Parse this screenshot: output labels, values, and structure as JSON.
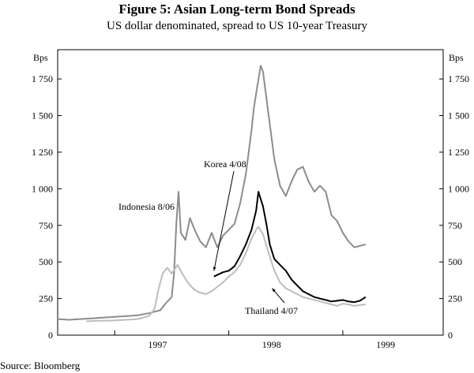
{
  "chart_data": {
    "type": "line",
    "title": "Figure 5: Asian Long-term Bond Spreads",
    "subtitle": "US dollar denominated, spread to US 10-year Treasury",
    "ylabel_left": "Bps",
    "ylabel_right": "Bps",
    "ylim": [
      0,
      1950
    ],
    "xlim": [
      1996.5,
      1999.88
    ],
    "yticks": [
      0,
      250,
      500,
      750,
      1000,
      1250,
      1500,
      1750
    ],
    "ytick_labels": [
      "0",
      "250",
      "500",
      "750",
      "1 000",
      "1 250",
      "1 500",
      "1 750"
    ],
    "xtick_labels": [
      {
        "label": "1997",
        "x": 1997.0
      },
      {
        "label": "1998",
        "x": 1998.0
      },
      {
        "label": "1999",
        "x": 1999.0
      }
    ],
    "year_boundaries": [
      1997.0,
      1998.0,
      1999.0
    ],
    "source": "Source: Bloomberg",
    "annotations": [
      {
        "text": "Korea 4/08",
        "series": "Korea",
        "at": [
          1997.87,
          440
        ]
      },
      {
        "text": "Indonesia 8/06",
        "series": "Indonesia",
        "at": [
          1997.55,
          800
        ]
      },
      {
        "text": "Thailand 4/07",
        "series": "Thailand",
        "at": [
          1998.38,
          320
        ]
      }
    ],
    "series": [
      {
        "name": "Indonesia",
        "color": "#8c8c8c",
        "points": [
          [
            1996.5,
            110
          ],
          [
            1996.6,
            105
          ],
          [
            1996.7,
            110
          ],
          [
            1996.8,
            115
          ],
          [
            1996.9,
            120
          ],
          [
            1997.0,
            125
          ],
          [
            1997.1,
            130
          ],
          [
            1997.2,
            135
          ],
          [
            1997.3,
            150
          ],
          [
            1997.4,
            170
          ],
          [
            1997.45,
            220
          ],
          [
            1997.5,
            260
          ],
          [
            1997.52,
            420
          ],
          [
            1997.54,
            760
          ],
          [
            1997.56,
            980
          ],
          [
            1997.58,
            700
          ],
          [
            1997.62,
            650
          ],
          [
            1997.66,
            800
          ],
          [
            1997.7,
            720
          ],
          [
            1997.75,
            640
          ],
          [
            1997.8,
            600
          ],
          [
            1997.85,
            700
          ],
          [
            1997.9,
            600
          ],
          [
            1997.95,
            680
          ],
          [
            1998.0,
            720
          ],
          [
            1998.05,
            760
          ],
          [
            1998.1,
            900
          ],
          [
            1998.15,
            1100
          ],
          [
            1998.2,
            1400
          ],
          [
            1998.22,
            1550
          ],
          [
            1998.25,
            1700
          ],
          [
            1998.28,
            1840
          ],
          [
            1998.3,
            1800
          ],
          [
            1998.35,
            1500
          ],
          [
            1998.4,
            1200
          ],
          [
            1998.45,
            1020
          ],
          [
            1998.5,
            950
          ],
          [
            1998.55,
            1050
          ],
          [
            1998.6,
            1130
          ],
          [
            1998.65,
            1150
          ],
          [
            1998.7,
            1050
          ],
          [
            1998.75,
            980
          ],
          [
            1998.8,
            1020
          ],
          [
            1998.85,
            980
          ],
          [
            1998.9,
            820
          ],
          [
            1998.95,
            780
          ],
          [
            1999.0,
            700
          ],
          [
            1999.05,
            640
          ],
          [
            1999.1,
            600
          ],
          [
            1999.15,
            610
          ],
          [
            1999.2,
            620
          ]
        ]
      },
      {
        "name": "Korea",
        "color": "#000000",
        "points": [
          [
            1997.87,
            400
          ],
          [
            1997.95,
            430
          ],
          [
            1998.0,
            440
          ],
          [
            1998.05,
            470
          ],
          [
            1998.1,
            540
          ],
          [
            1998.15,
            620
          ],
          [
            1998.2,
            720
          ],
          [
            1998.24,
            850
          ],
          [
            1998.26,
            980
          ],
          [
            1998.28,
            930
          ],
          [
            1998.3,
            880
          ],
          [
            1998.33,
            760
          ],
          [
            1998.36,
            620
          ],
          [
            1998.4,
            520
          ],
          [
            1998.45,
            480
          ],
          [
            1998.5,
            440
          ],
          [
            1998.55,
            380
          ],
          [
            1998.6,
            340
          ],
          [
            1998.65,
            300
          ],
          [
            1998.7,
            280
          ],
          [
            1998.75,
            260
          ],
          [
            1998.8,
            250
          ],
          [
            1998.85,
            240
          ],
          [
            1998.9,
            230
          ],
          [
            1998.95,
            235
          ],
          [
            1999.0,
            240
          ],
          [
            1999.05,
            230
          ],
          [
            1999.1,
            225
          ],
          [
            1999.15,
            235
          ],
          [
            1999.2,
            260
          ]
        ]
      },
      {
        "name": "Thailand",
        "color": "#bdbdbd",
        "points": [
          [
            1996.75,
            95
          ],
          [
            1996.85,
            98
          ],
          [
            1997.0,
            100
          ],
          [
            1997.1,
            105
          ],
          [
            1997.2,
            110
          ],
          [
            1997.3,
            130
          ],
          [
            1997.35,
            180
          ],
          [
            1997.38,
            300
          ],
          [
            1997.42,
            420
          ],
          [
            1997.46,
            460
          ],
          [
            1997.5,
            420
          ],
          [
            1997.55,
            480
          ],
          [
            1997.6,
            410
          ],
          [
            1997.65,
            350
          ],
          [
            1997.7,
            310
          ],
          [
            1997.75,
            290
          ],
          [
            1997.8,
            280
          ],
          [
            1997.85,
            300
          ],
          [
            1997.9,
            330
          ],
          [
            1997.95,
            360
          ],
          [
            1998.0,
            400
          ],
          [
            1998.05,
            430
          ],
          [
            1998.1,
            480
          ],
          [
            1998.15,
            560
          ],
          [
            1998.2,
            660
          ],
          [
            1998.24,
            720
          ],
          [
            1998.26,
            740
          ],
          [
            1998.3,
            690
          ],
          [
            1998.35,
            560
          ],
          [
            1998.4,
            440
          ],
          [
            1998.45,
            360
          ],
          [
            1998.5,
            320
          ],
          [
            1998.55,
            300
          ],
          [
            1998.6,
            280
          ],
          [
            1998.65,
            260
          ],
          [
            1998.7,
            250
          ],
          [
            1998.75,
            240
          ],
          [
            1998.8,
            230
          ],
          [
            1998.85,
            220
          ],
          [
            1998.9,
            210
          ],
          [
            1998.95,
            200
          ],
          [
            1999.0,
            215
          ],
          [
            1999.05,
            210
          ],
          [
            1999.1,
            200
          ],
          [
            1999.15,
            205
          ],
          [
            1999.2,
            210
          ]
        ]
      }
    ]
  }
}
